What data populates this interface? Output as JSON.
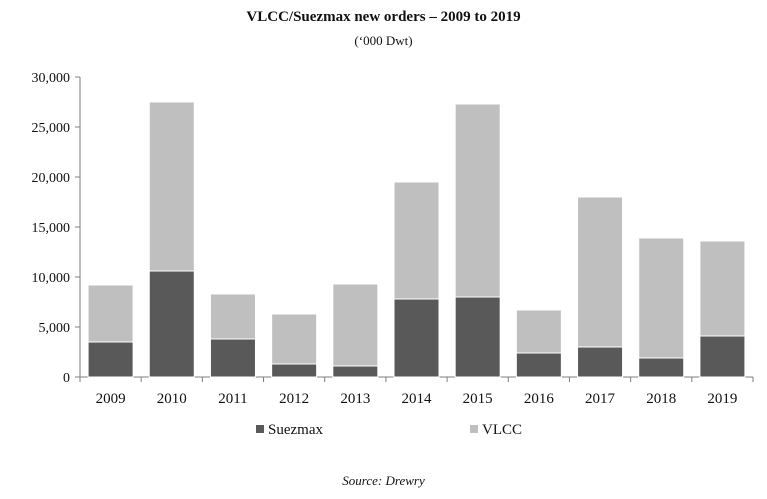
{
  "chart_data": {
    "type": "bar",
    "stacked": true,
    "title": "VLCC/Suezmax new orders – 2009 to 2019",
    "subtitle": "(‘000 Dwt)",
    "source": "Source: Drewry",
    "xlabel": "",
    "ylabel": "",
    "ylim": [
      0,
      30000
    ],
    "yticks": [
      0,
      5000,
      10000,
      15000,
      20000,
      25000,
      30000
    ],
    "ytick_labels": [
      "0",
      "5,000",
      "10,000",
      "15,000",
      "20,000",
      "25,000",
      "30,000"
    ],
    "categories": [
      "2009",
      "2010",
      "2011",
      "2012",
      "2013",
      "2014",
      "2015",
      "2016",
      "2017",
      "2018",
      "2019"
    ],
    "series": [
      {
        "name": "Suezmax",
        "color": "#595959",
        "values": [
          3500,
          10600,
          3800,
          1300,
          1100,
          7800,
          8000,
          2400,
          3000,
          1900,
          4100
        ]
      },
      {
        "name": "VLCC",
        "color": "#bfbfbf",
        "values": [
          5700,
          16900,
          4500,
          5000,
          8200,
          11700,
          19300,
          4300,
          15000,
          12000,
          9500
        ]
      }
    ],
    "grid": false,
    "legend_position": "bottom"
  }
}
